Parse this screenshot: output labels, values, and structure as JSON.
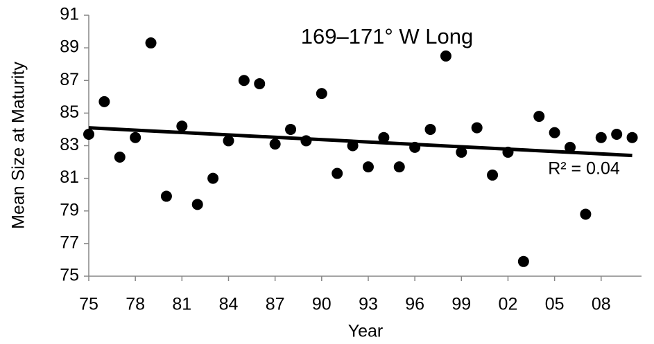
{
  "chart_data": {
    "type": "scatter",
    "title": "169–171° W Long",
    "xlabel": "Year",
    "ylabel": "Mean Size at Maturity",
    "x": [
      1975,
      1976,
      1977,
      1978,
      1979,
      1980,
      1981,
      1982,
      1983,
      1984,
      1985,
      1986,
      1987,
      1988,
      1989,
      1990,
      1991,
      1992,
      1993,
      1994,
      1995,
      1996,
      1997,
      1998,
      1999,
      2000,
      2001,
      2002,
      2003,
      2004,
      2005,
      2006,
      2007,
      2008,
      2009,
      2010
    ],
    "values": [
      83.7,
      85.7,
      82.3,
      83.5,
      89.3,
      79.9,
      84.2,
      79.4,
      81.0,
      83.3,
      87.0,
      86.8,
      83.1,
      84.0,
      83.3,
      86.2,
      81.3,
      83.0,
      81.7,
      83.5,
      81.7,
      82.9,
      84.0,
      88.5,
      82.6,
      84.1,
      81.2,
      82.6,
      75.9,
      84.8,
      83.8,
      82.9,
      78.8,
      83.5,
      83.7,
      83.5
    ],
    "color": "#000000",
    "trendline": {
      "x": [
        1975,
        2010
      ],
      "y": [
        84.1,
        82.4
      ],
      "color": "#000000",
      "annotation": "R² = 0.04"
    },
    "xlim": [
      1975,
      2010.6
    ],
    "xticks": [
      {
        "value": 1975,
        "label": "75"
      },
      {
        "value": 1978,
        "label": "78"
      },
      {
        "value": 1981,
        "label": "81"
      },
      {
        "value": 1984,
        "label": "84"
      },
      {
        "value": 1987,
        "label": "87"
      },
      {
        "value": 1990,
        "label": "90"
      },
      {
        "value": 1993,
        "label": "93"
      },
      {
        "value": 1996,
        "label": "96"
      },
      {
        "value": 1999,
        "label": "99"
      },
      {
        "value": 2002,
        "label": "02"
      },
      {
        "value": 2005,
        "label": "05"
      },
      {
        "value": 2008,
        "label": "08"
      }
    ],
    "ylim": [
      75,
      91
    ],
    "yticks": [
      75,
      77,
      79,
      81,
      83,
      85,
      87,
      89,
      91
    ],
    "grid": false
  }
}
